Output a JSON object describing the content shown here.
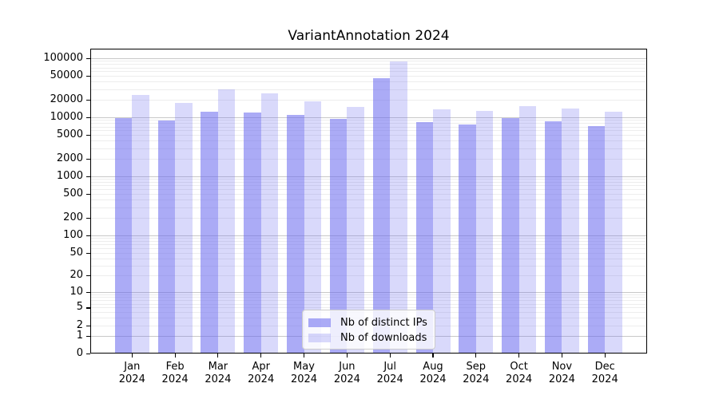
{
  "page": {
    "background": "#ffffff"
  },
  "chart_data": {
    "type": "bar",
    "title": "VariantAnnotation 2024",
    "x": {
      "months": [
        "Jan",
        "Feb",
        "Mar",
        "Apr",
        "May",
        "Jun",
        "Jul",
        "Aug",
        "Sep",
        "Oct",
        "Nov",
        "Dec"
      ],
      "year": "2024"
    },
    "series": [
      {
        "name": "Nb of distinct IPs",
        "color": "rgba(102,102,238,0.55)",
        "values": [
          9800,
          8850,
          12450,
          11950,
          11100,
          9400,
          46400,
          8200,
          7650,
          9600,
          8650,
          7150
        ]
      },
      {
        "name": "Nb of downloads",
        "color": "rgba(102,102,238,0.25)",
        "values": [
          23900,
          17500,
          29450,
          25200,
          18800,
          15000,
          87500,
          13800,
          12800,
          15600,
          14200,
          12450
        ]
      }
    ],
    "y_axis": {
      "scale": "log10(1+x)",
      "ticks": [
        100000,
        50000,
        20000,
        10000,
        5000,
        2000,
        1000,
        500,
        200,
        100,
        50,
        20,
        10,
        5,
        2,
        1,
        0
      ],
      "min": 0,
      "max": 145000
    },
    "legend": {
      "position": "lower center",
      "items": [
        "Nb of distinct IPs",
        "Nb of downloads"
      ]
    },
    "grid": {
      "on": true,
      "major_color": "#c8c8c8",
      "minor_color": "#ededed"
    },
    "axis_color": "#000000",
    "text_color": "#000000"
  }
}
